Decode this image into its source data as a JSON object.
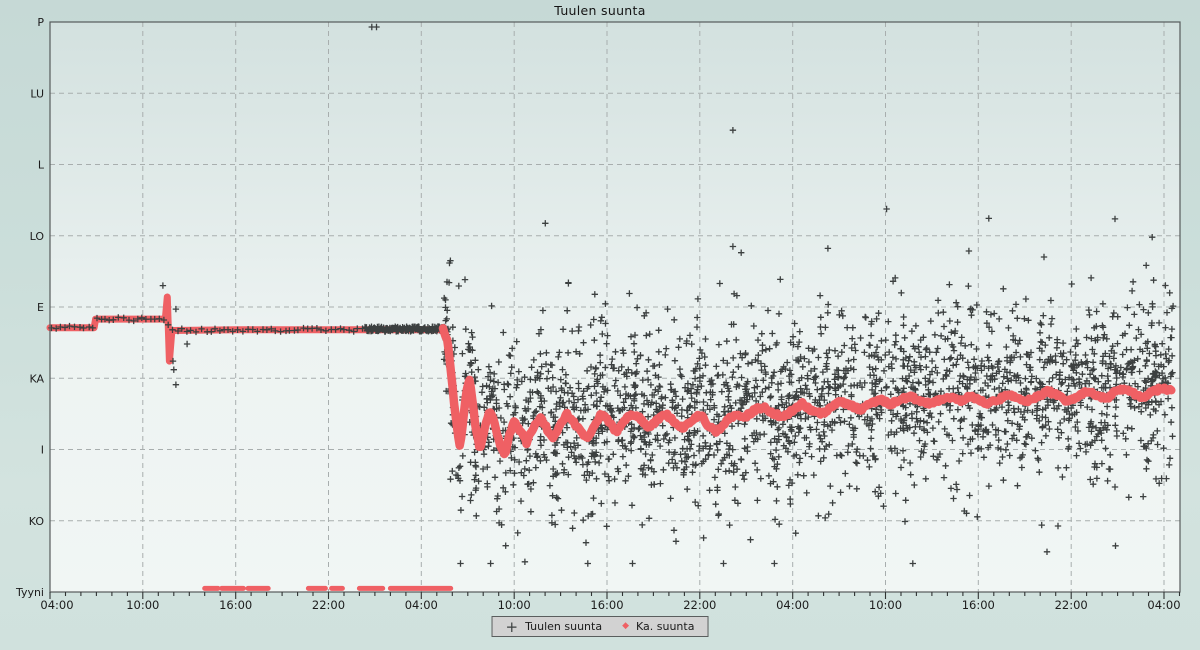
{
  "chart_data": {
    "type": "scatter",
    "title": "Tuulen suunta",
    "x_major_labels": [
      "04:00",
      "10:00",
      "16:00",
      "22:00",
      "04:00",
      "10:00",
      "16:00",
      "22:00",
      "04:00",
      "10:00",
      "16:00",
      "22:00",
      "04:00"
    ],
    "x_axis": {
      "start_hour": 4,
      "end_hour": 76,
      "major_step_hours": 6,
      "minor_step_hours": 1
    },
    "y_categories": [
      "P",
      "LU",
      "L",
      "LO",
      "E",
      "KA",
      "I",
      "KO",
      "Tyyni"
    ],
    "legend_position": "bottom-center",
    "grid": "dashed",
    "colors": {
      "plus": "#3c4040",
      "avg": "#ef6064",
      "gridline": "#a8aeae",
      "axis": "#565b5b",
      "plot_bg_top": "#d3e1df",
      "plot_bg_mid": "#edf3f2",
      "plot_bg_bottom": "#f1f6f4",
      "legend_bg": "#d2d2d2"
    },
    "series": [
      {
        "name": "Tuulen suunta",
        "marker": "plus",
        "color": "#3c4040"
      },
      {
        "name": "Ka. suunta",
        "marker": "diamond",
        "color": "#ef6064"
      }
    ],
    "avg_line": [
      [
        4.0,
        4.29
      ],
      [
        6.85,
        4.29
      ],
      [
        6.95,
        4.17
      ],
      [
        11.45,
        4.17
      ],
      [
        11.58,
        3.86
      ],
      [
        11.72,
        4.76
      ],
      [
        11.88,
        4.33
      ],
      [
        16.0,
        4.32
      ],
      [
        24.0,
        4.32
      ],
      [
        29.4,
        4.32
      ],
      [
        29.7,
        4.5
      ],
      [
        29.9,
        4.9
      ],
      [
        30.1,
        5.3
      ],
      [
        30.3,
        5.65
      ],
      [
        30.5,
        6.0
      ],
      [
        30.7,
        5.6
      ],
      [
        30.9,
        5.2
      ],
      [
        31.1,
        5.0
      ],
      [
        31.3,
        5.3
      ],
      [
        31.5,
        5.7
      ],
      [
        31.8,
        6.0
      ],
      [
        32.1,
        5.7
      ],
      [
        32.4,
        5.45
      ],
      [
        32.7,
        5.6
      ],
      [
        33.1,
        5.95
      ],
      [
        33.4,
        6.1
      ],
      [
        33.7,
        5.8
      ],
      [
        34.0,
        5.6
      ],
      [
        34.4,
        5.75
      ],
      [
        34.8,
        5.9
      ],
      [
        35.2,
        5.7
      ],
      [
        35.7,
        5.55
      ],
      [
        36.1,
        5.7
      ],
      [
        36.5,
        5.85
      ],
      [
        37.0,
        5.65
      ],
      [
        37.4,
        5.5
      ],
      [
        37.8,
        5.6
      ],
      [
        38.3,
        5.75
      ],
      [
        38.7,
        5.85
      ],
      [
        39.2,
        5.65
      ],
      [
        39.6,
        5.5
      ],
      [
        40.1,
        5.6
      ],
      [
        40.6,
        5.75
      ],
      [
        41.1,
        5.6
      ],
      [
        41.6,
        5.5
      ],
      [
        42.1,
        5.55
      ],
      [
        42.7,
        5.7
      ],
      [
        43.2,
        5.6
      ],
      [
        43.8,
        5.5
      ],
      [
        44.3,
        5.6
      ],
      [
        44.9,
        5.7
      ],
      [
        45.4,
        5.6
      ],
      [
        46.0,
        5.5
      ],
      [
        46.5,
        5.65
      ],
      [
        47.1,
        5.75
      ],
      [
        47.7,
        5.6
      ],
      [
        48.3,
        5.5
      ],
      [
        48.9,
        5.55
      ],
      [
        49.5,
        5.45
      ],
      [
        50.1,
        5.4
      ],
      [
        50.8,
        5.5
      ],
      [
        51.4,
        5.55
      ],
      [
        52.0,
        5.45
      ],
      [
        52.6,
        5.35
      ],
      [
        53.2,
        5.45
      ],
      [
        53.9,
        5.5
      ],
      [
        54.5,
        5.4
      ],
      [
        55.1,
        5.32
      ],
      [
        55.8,
        5.38
      ],
      [
        56.4,
        5.45
      ],
      [
        57.0,
        5.35
      ],
      [
        57.7,
        5.3
      ],
      [
        58.3,
        5.36
      ],
      [
        59.0,
        5.3
      ],
      [
        59.6,
        5.26
      ],
      [
        60.2,
        5.32
      ],
      [
        60.9,
        5.36
      ],
      [
        61.5,
        5.3
      ],
      [
        62.1,
        5.26
      ],
      [
        62.8,
        5.32
      ],
      [
        63.4,
        5.26
      ],
      [
        64.0,
        5.3
      ],
      [
        64.7,
        5.36
      ],
      [
        65.3,
        5.3
      ],
      [
        65.9,
        5.22
      ],
      [
        66.6,
        5.28
      ],
      [
        67.2,
        5.32
      ],
      [
        67.8,
        5.26
      ],
      [
        68.5,
        5.18
      ],
      [
        69.1,
        5.24
      ],
      [
        69.7,
        5.32
      ],
      [
        70.4,
        5.26
      ],
      [
        71.0,
        5.18
      ],
      [
        71.6,
        5.24
      ],
      [
        72.3,
        5.28
      ],
      [
        72.9,
        5.18
      ],
      [
        73.5,
        5.14
      ],
      [
        74.1,
        5.22
      ],
      [
        74.7,
        5.28
      ],
      [
        75.3,
        5.18
      ],
      [
        75.9,
        5.14
      ],
      [
        76.5,
        5.18
      ]
    ],
    "calm_runs_hours": [
      [
        14.0,
        14.86
      ],
      [
        15.1,
        16.5
      ],
      [
        16.8,
        18.1
      ],
      [
        20.7,
        21.8
      ],
      [
        22.2,
        22.9
      ],
      [
        24.0,
        25.5
      ],
      [
        26.0,
        29.9
      ]
    ],
    "calm_level": 7.95,
    "dark_run": {
      "start": 24.36,
      "end": 29.66,
      "v": 4.31,
      "jitter": 0.07,
      "step": 0.032
    },
    "steady_pluses": {
      "start": 4.1,
      "end": 24.3,
      "step": 0.22,
      "jitter": 0.05
    },
    "spike_pluses": [
      [
        11.3,
        3.7
      ],
      [
        12.14,
        4.03
      ],
      [
        12.86,
        4.52
      ],
      [
        11.95,
        4.76
      ],
      [
        12.0,
        4.88
      ],
      [
        12.14,
        5.09
      ]
    ],
    "north_pluses": [
      [
        24.8,
        0.07
      ],
      [
        25.1,
        0.07
      ]
    ],
    "scatter": {
      "start": 29.45,
      "end": 76.6,
      "count": 2500,
      "seed": 20240901,
      "sd_main": 0.55,
      "sd_tail": 1.05,
      "tail_frac": 0.15,
      "center_offset": -0.08,
      "v_min": 0.35,
      "v_max": 7.6
    }
  },
  "legend": {
    "items": [
      {
        "label": "Tuulen suunta",
        "marker": "plus"
      },
      {
        "label": "Ka. suunta",
        "marker": "diamond"
      }
    ]
  }
}
